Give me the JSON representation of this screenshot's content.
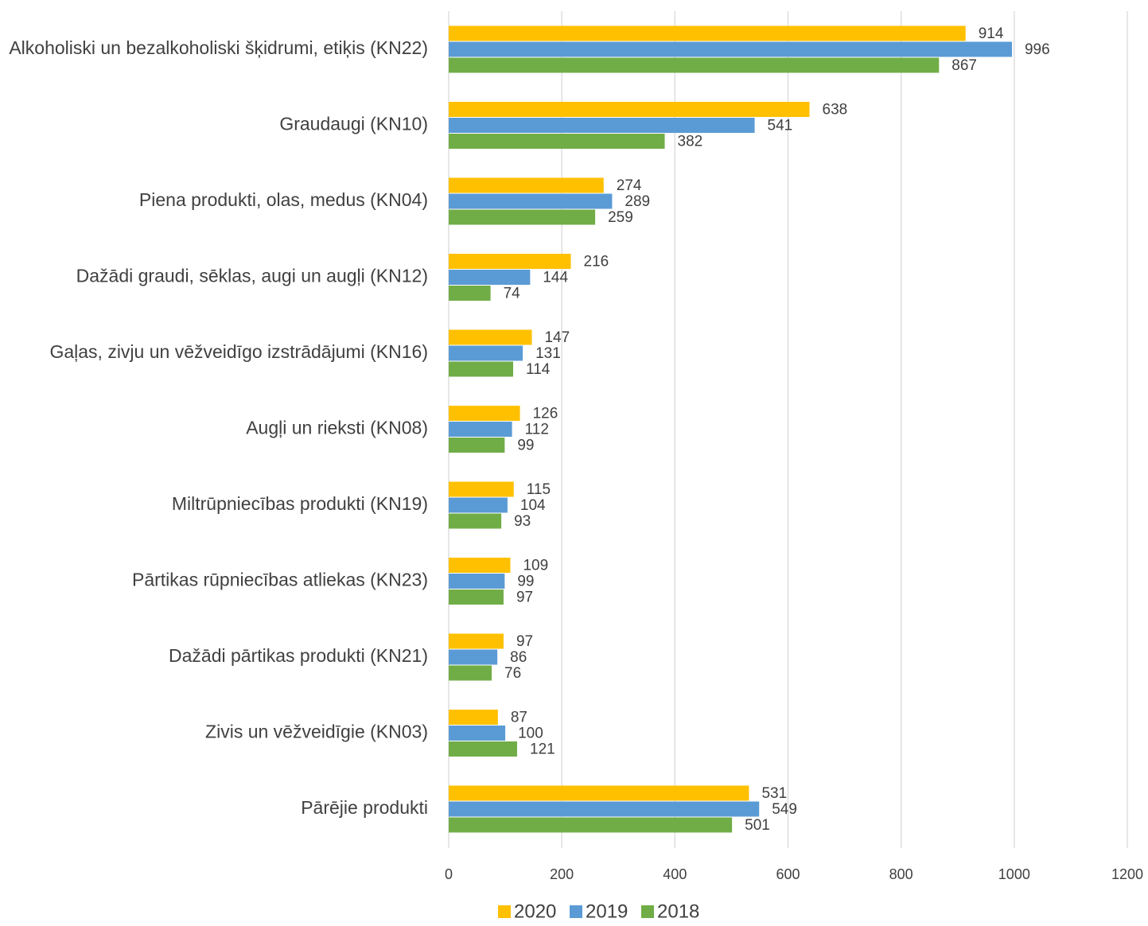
{
  "chart_data": {
    "type": "bar",
    "orientation": "horizontal",
    "categories": [
      "Alkoholiski un bezalkoholiski šķidrumi, etiķis (KN22)",
      "Graudaugi (KN10)",
      "Piena produkti, olas, medus (KN04)",
      "Dažādi graudi, sēklas, augi un augļi (KN12)",
      "Gaļas, zivju un vēžveidīgo izstrādājumi (KN16)",
      "Augļi un rieksti (KN08)",
      "Miltrūpniecības produkti (KN19)",
      "Pārtikas rūpniecības atliekas (KN23)",
      "Dažādi pārtikas produkti (KN21)",
      "Zivis un vēžveidīgie (KN03)",
      "Pārējie produkti"
    ],
    "series": [
      {
        "name": "2020",
        "color": "#FFC000",
        "values": [
          914,
          638,
          274,
          216,
          147,
          126,
          115,
          109,
          97,
          87,
          531
        ]
      },
      {
        "name": "2019",
        "color": "#5B9BD5",
        "values": [
          996,
          541,
          289,
          144,
          131,
          112,
          104,
          99,
          86,
          100,
          549
        ]
      },
      {
        "name": "2018",
        "color": "#70AD47",
        "values": [
          867,
          382,
          259,
          74,
          114,
          99,
          93,
          97,
          76,
          121,
          501
        ]
      }
    ],
    "xlim": [
      0,
      1200
    ],
    "xticks": [
      0,
      200,
      400,
      600,
      800,
      1000,
      1200
    ],
    "grid": "vertical",
    "legend": "bottom-center",
    "title": "",
    "xlabel": "",
    "ylabel": ""
  }
}
